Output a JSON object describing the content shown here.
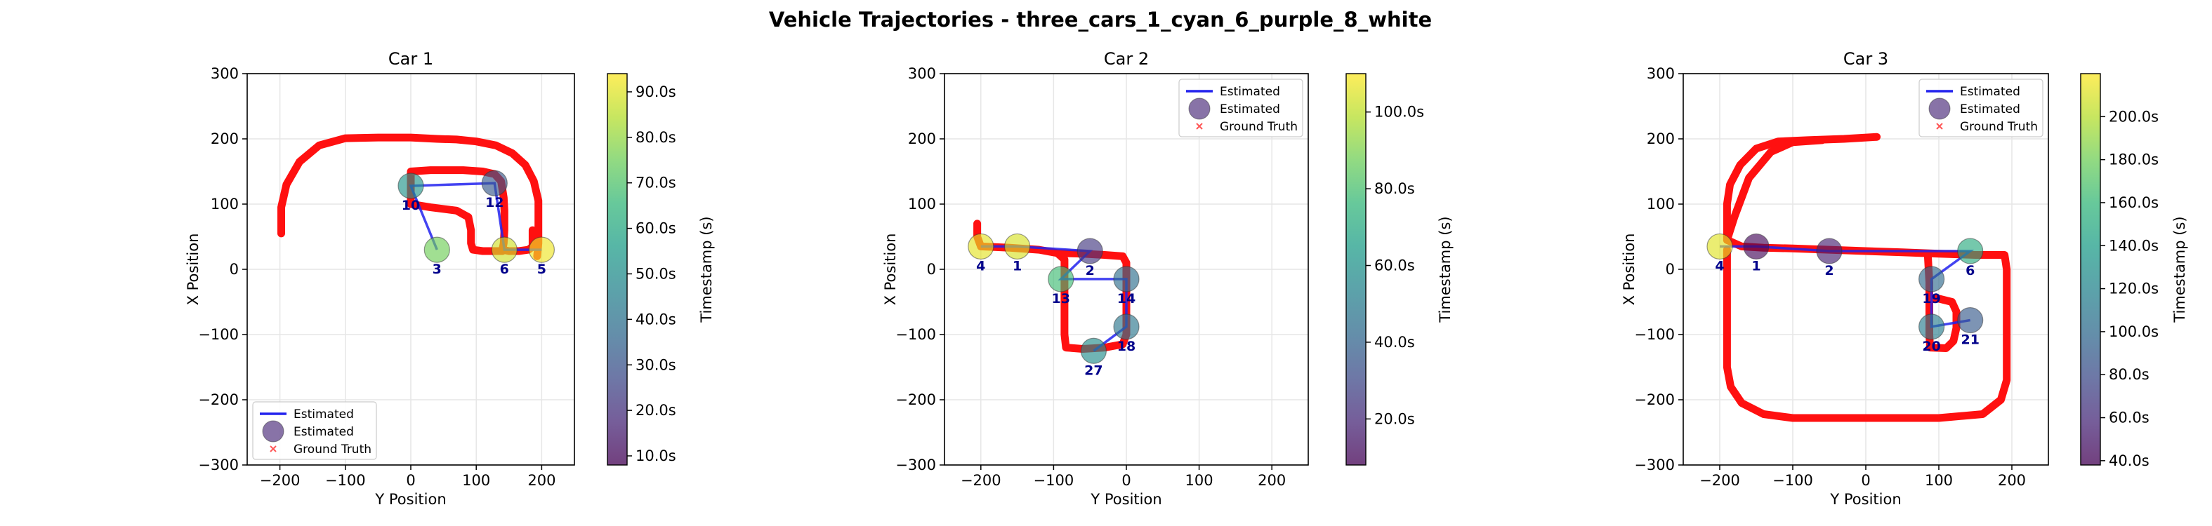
{
  "figure": {
    "title": "Vehicle Trajectories - three_cars_1_cyan_6_purple_8_white"
  },
  "colors": {
    "estimated_line": "#2222ee",
    "ground_truth": "#ff1010",
    "label": "#00008b",
    "grid": "#e6e6e6",
    "viridis": [
      "#440154",
      "#482878",
      "#3e4a89",
      "#31688e",
      "#26828e",
      "#1f9e89",
      "#35b779",
      "#6ece58",
      "#b5de2b",
      "#fde725"
    ]
  },
  "chart_data": [
    {
      "type": "scatter",
      "title": "Car 1",
      "xlabel": "Y Position",
      "ylabel": "X Position",
      "xlim": [
        -250,
        250
      ],
      "ylim": [
        -300,
        300
      ],
      "xticks": [
        -200,
        -100,
        0,
        100,
        200
      ],
      "yticks": [
        -300,
        -200,
        -100,
        0,
        100,
        200,
        300
      ],
      "grid": true,
      "legend": {
        "location": "lower left",
        "entries": [
          "Estimated",
          "Estimated",
          "Ground Truth"
        ]
      },
      "colorbar": {
        "label": "Timestamp (s)",
        "range": [
          8,
          94
        ],
        "ticks": [
          10,
          20,
          30,
          40,
          50,
          60,
          70,
          80,
          90
        ],
        "tick_labels": [
          "10.0s",
          "20.0s",
          "30.0s",
          "40.0s",
          "50.0s",
          "60.0s",
          "70.0s",
          "80.0s",
          "90.0s"
        ]
      },
      "estimated": [
        {
          "label": "3",
          "x": 40,
          "y": 30,
          "t": 75
        },
        {
          "label": "10",
          "x": 0,
          "y": 128,
          "t": 52
        },
        {
          "label": "12",
          "x": 128,
          "y": 132,
          "t": 32
        },
        {
          "label": "6",
          "x": 143,
          "y": 30,
          "t": 88
        },
        {
          "label": "5",
          "x": 200,
          "y": 30,
          "t": 92
        }
      ],
      "ground_truth": [
        [
          [
            -198,
            55
          ],
          [
            -198,
            95
          ],
          [
            -190,
            130
          ],
          [
            -170,
            165
          ],
          [
            -140,
            190
          ],
          [
            -100,
            201
          ],
          [
            -50,
            202
          ],
          [
            0,
            202
          ],
          [
            40,
            200
          ],
          [
            70,
            199
          ],
          [
            100,
            196
          ],
          [
            130,
            190
          ],
          [
            155,
            178
          ],
          [
            175,
            160
          ],
          [
            188,
            135
          ],
          [
            195,
            105
          ],
          [
            195,
            70
          ],
          [
            195,
            40
          ],
          [
            193,
            20
          ]
        ],
        [
          [
            0,
            100
          ],
          [
            0,
            125
          ],
          [
            0,
            150
          ],
          [
            30,
            152
          ],
          [
            80,
            152
          ],
          [
            110,
            150
          ],
          [
            128,
            146
          ],
          [
            138,
            135
          ],
          [
            142,
            110
          ],
          [
            143,
            90
          ],
          [
            143,
            60
          ],
          [
            142,
            40
          ],
          [
            140,
            30
          ],
          [
            150,
            28
          ],
          [
            165,
            28
          ],
          [
            180,
            30
          ],
          [
            186,
            35
          ],
          [
            186,
            60
          ]
        ],
        [
          [
            0,
            100
          ],
          [
            30,
            95
          ],
          [
            70,
            90
          ],
          [
            88,
            80
          ],
          [
            92,
            60
          ],
          [
            92,
            40
          ],
          [
            95,
            30
          ],
          [
            110,
            28
          ],
          [
            140,
            28
          ]
        ]
      ]
    },
    {
      "type": "scatter",
      "title": "Car 2",
      "xlabel": "Y Position",
      "ylabel": "X Position",
      "xlim": [
        -250,
        250
      ],
      "ylim": [
        -300,
        300
      ],
      "xticks": [
        -200,
        -100,
        0,
        100,
        200
      ],
      "yticks": [
        -300,
        -200,
        -100,
        0,
        100,
        200,
        300
      ],
      "grid": true,
      "legend": {
        "location": "upper right",
        "entries": [
          "Estimated",
          "Estimated",
          "Ground Truth"
        ]
      },
      "colorbar": {
        "label": "Timestamp (s)",
        "range": [
          8,
          110
        ],
        "ticks": [
          20,
          40,
          60,
          80,
          100
        ],
        "tick_labels": [
          "20.0s",
          "40.0s",
          "60.0s",
          "80.0s",
          "100.0s"
        ]
      },
      "estimated": [
        {
          "label": "4",
          "x": -200,
          "y": 35,
          "t": 106
        },
        {
          "label": "1",
          "x": -150,
          "y": 35,
          "t": 104
        },
        {
          "label": "2",
          "x": -50,
          "y": 28,
          "t": 25
        },
        {
          "label": "13",
          "x": -90,
          "y": -15,
          "t": 78
        },
        {
          "label": "14",
          "x": 0,
          "y": -15,
          "t": 45
        },
        {
          "label": "18",
          "x": 0,
          "y": -88,
          "t": 48
        },
        {
          "label": "27",
          "x": -45,
          "y": -125,
          "t": 58
        }
      ],
      "ground_truth": [
        [
          [
            -205,
            70
          ],
          [
            -205,
            50
          ],
          [
            -200,
            35
          ],
          [
            -160,
            33
          ],
          [
            -120,
            30
          ],
          [
            -95,
            25
          ],
          [
            -85,
            15
          ],
          [
            -85,
            -20
          ],
          [
            -85,
            -60
          ],
          [
            -85,
            -100
          ],
          [
            -83,
            -120
          ],
          [
            -60,
            -122
          ],
          [
            -30,
            -120
          ],
          [
            -5,
            -115
          ],
          [
            0,
            -100
          ],
          [
            0,
            -60
          ],
          [
            0,
            -20
          ],
          [
            0,
            10
          ],
          [
            -5,
            20
          ],
          [
            -30,
            22
          ],
          [
            -60,
            24
          ],
          [
            -95,
            25
          ]
        ]
      ]
    },
    {
      "type": "scatter",
      "title": "Car 3",
      "xlabel": "Y Position",
      "ylabel": "X Position",
      "xlim": [
        -250,
        250
      ],
      "ylim": [
        -300,
        300
      ],
      "xticks": [
        -200,
        -100,
        0,
        100,
        200
      ],
      "yticks": [
        -300,
        -200,
        -100,
        0,
        100,
        200,
        300
      ],
      "grid": true,
      "legend": {
        "location": "upper right",
        "entries": [
          "Estimated",
          "Estimated",
          "Ground Truth"
        ]
      },
      "colorbar": {
        "label": "Timestamp (s)",
        "range": [
          38,
          220
        ],
        "ticks": [
          40,
          60,
          80,
          100,
          120,
          140,
          160,
          180,
          200
        ],
        "tick_labels": [
          "40.0s",
          "60.0s",
          "80.0s",
          "100.0s",
          "120.0s",
          "140.0s",
          "160.0s",
          "180.0s",
          "200.0s"
        ]
      },
      "estimated": [
        {
          "label": "4",
          "x": -200,
          "y": 35,
          "t": 212
        },
        {
          "label": "1",
          "x": -150,
          "y": 35,
          "t": 42
        },
        {
          "label": "2",
          "x": -50,
          "y": 28,
          "t": 55
        },
        {
          "label": "6",
          "x": 143,
          "y": 28,
          "t": 150
        },
        {
          "label": "19",
          "x": 90,
          "y": -15,
          "t": 100
        },
        {
          "label": "20",
          "x": 90,
          "y": -88,
          "t": 115
        },
        {
          "label": "21",
          "x": 143,
          "y": -78,
          "t": 90
        }
      ],
      "ground_truth": [
        [
          [
            15,
            203
          ],
          [
            -30,
            200
          ],
          [
            -80,
            198
          ],
          [
            -120,
            196
          ],
          [
            -150,
            185
          ],
          [
            -172,
            160
          ],
          [
            -186,
            130
          ],
          [
            -190,
            100
          ],
          [
            -190,
            70
          ],
          [
            -190,
            45
          ],
          [
            -170,
            35
          ],
          [
            -140,
            33
          ],
          [
            -100,
            32
          ],
          [
            -50,
            30
          ],
          [
            0,
            28
          ],
          [
            50,
            26
          ],
          [
            100,
            24
          ],
          [
            150,
            22
          ],
          [
            190,
            22
          ],
          [
            193,
            0
          ],
          [
            193,
            -60
          ],
          [
            193,
            -120
          ],
          [
            193,
            -170
          ],
          [
            185,
            -200
          ],
          [
            160,
            -222
          ],
          [
            100,
            -228
          ],
          [
            0,
            -228
          ],
          [
            -100,
            -228
          ],
          [
            -140,
            -222
          ],
          [
            -170,
            -205
          ],
          [
            -185,
            -180
          ],
          [
            -190,
            -150
          ],
          [
            -190,
            -100
          ],
          [
            -190,
            -50
          ],
          [
            -190,
            0
          ],
          [
            -190,
            30
          ]
        ],
        [
          [
            -190,
            45
          ],
          [
            -180,
            80
          ],
          [
            -160,
            140
          ],
          [
            -130,
            180
          ],
          [
            -100,
            195
          ],
          [
            -60,
            198
          ]
        ],
        [
          [
            85,
            20
          ],
          [
            87,
            -20
          ],
          [
            87,
            -60
          ],
          [
            87,
            -100
          ],
          [
            88,
            -120
          ],
          [
            110,
            -121
          ],
          [
            120,
            -110
          ],
          [
            124,
            -90
          ],
          [
            124,
            -65
          ],
          [
            118,
            -50
          ],
          [
            100,
            -45
          ],
          [
            87,
            -45
          ]
        ]
      ]
    }
  ]
}
